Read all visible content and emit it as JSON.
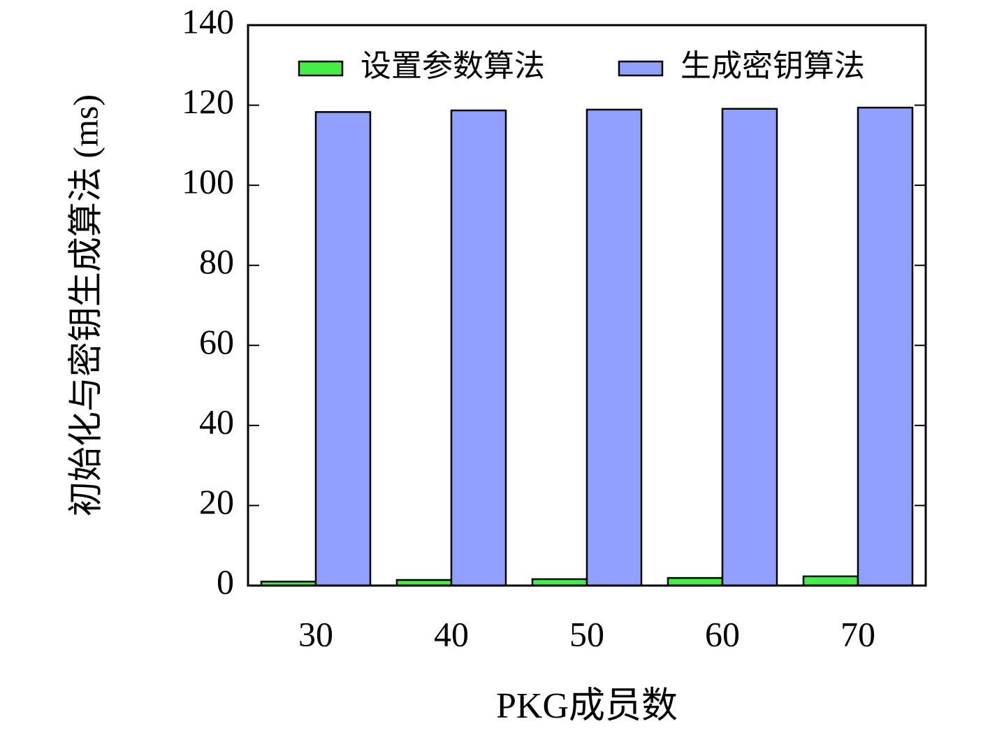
{
  "chart_data": {
    "type": "bar",
    "x_label": "PKG成员数",
    "y_label": "初始化与密钥生成算法 (ms)",
    "categories": [
      "30",
      "40",
      "50",
      "60",
      "70"
    ],
    "series": [
      {
        "name": "设置参数算法",
        "color": "#44ee44",
        "values": [
          1.0,
          1.4,
          1.6,
          1.9,
          2.3
        ]
      },
      {
        "name": "生成密钥算法",
        "color": "#919fff",
        "values": [
          118.3,
          118.7,
          118.9,
          119.1,
          119.4
        ]
      }
    ],
    "ylim": [
      0,
      140
    ],
    "yticks": [
      0,
      20,
      40,
      60,
      80,
      100,
      120,
      140
    ],
    "legend": "top"
  }
}
